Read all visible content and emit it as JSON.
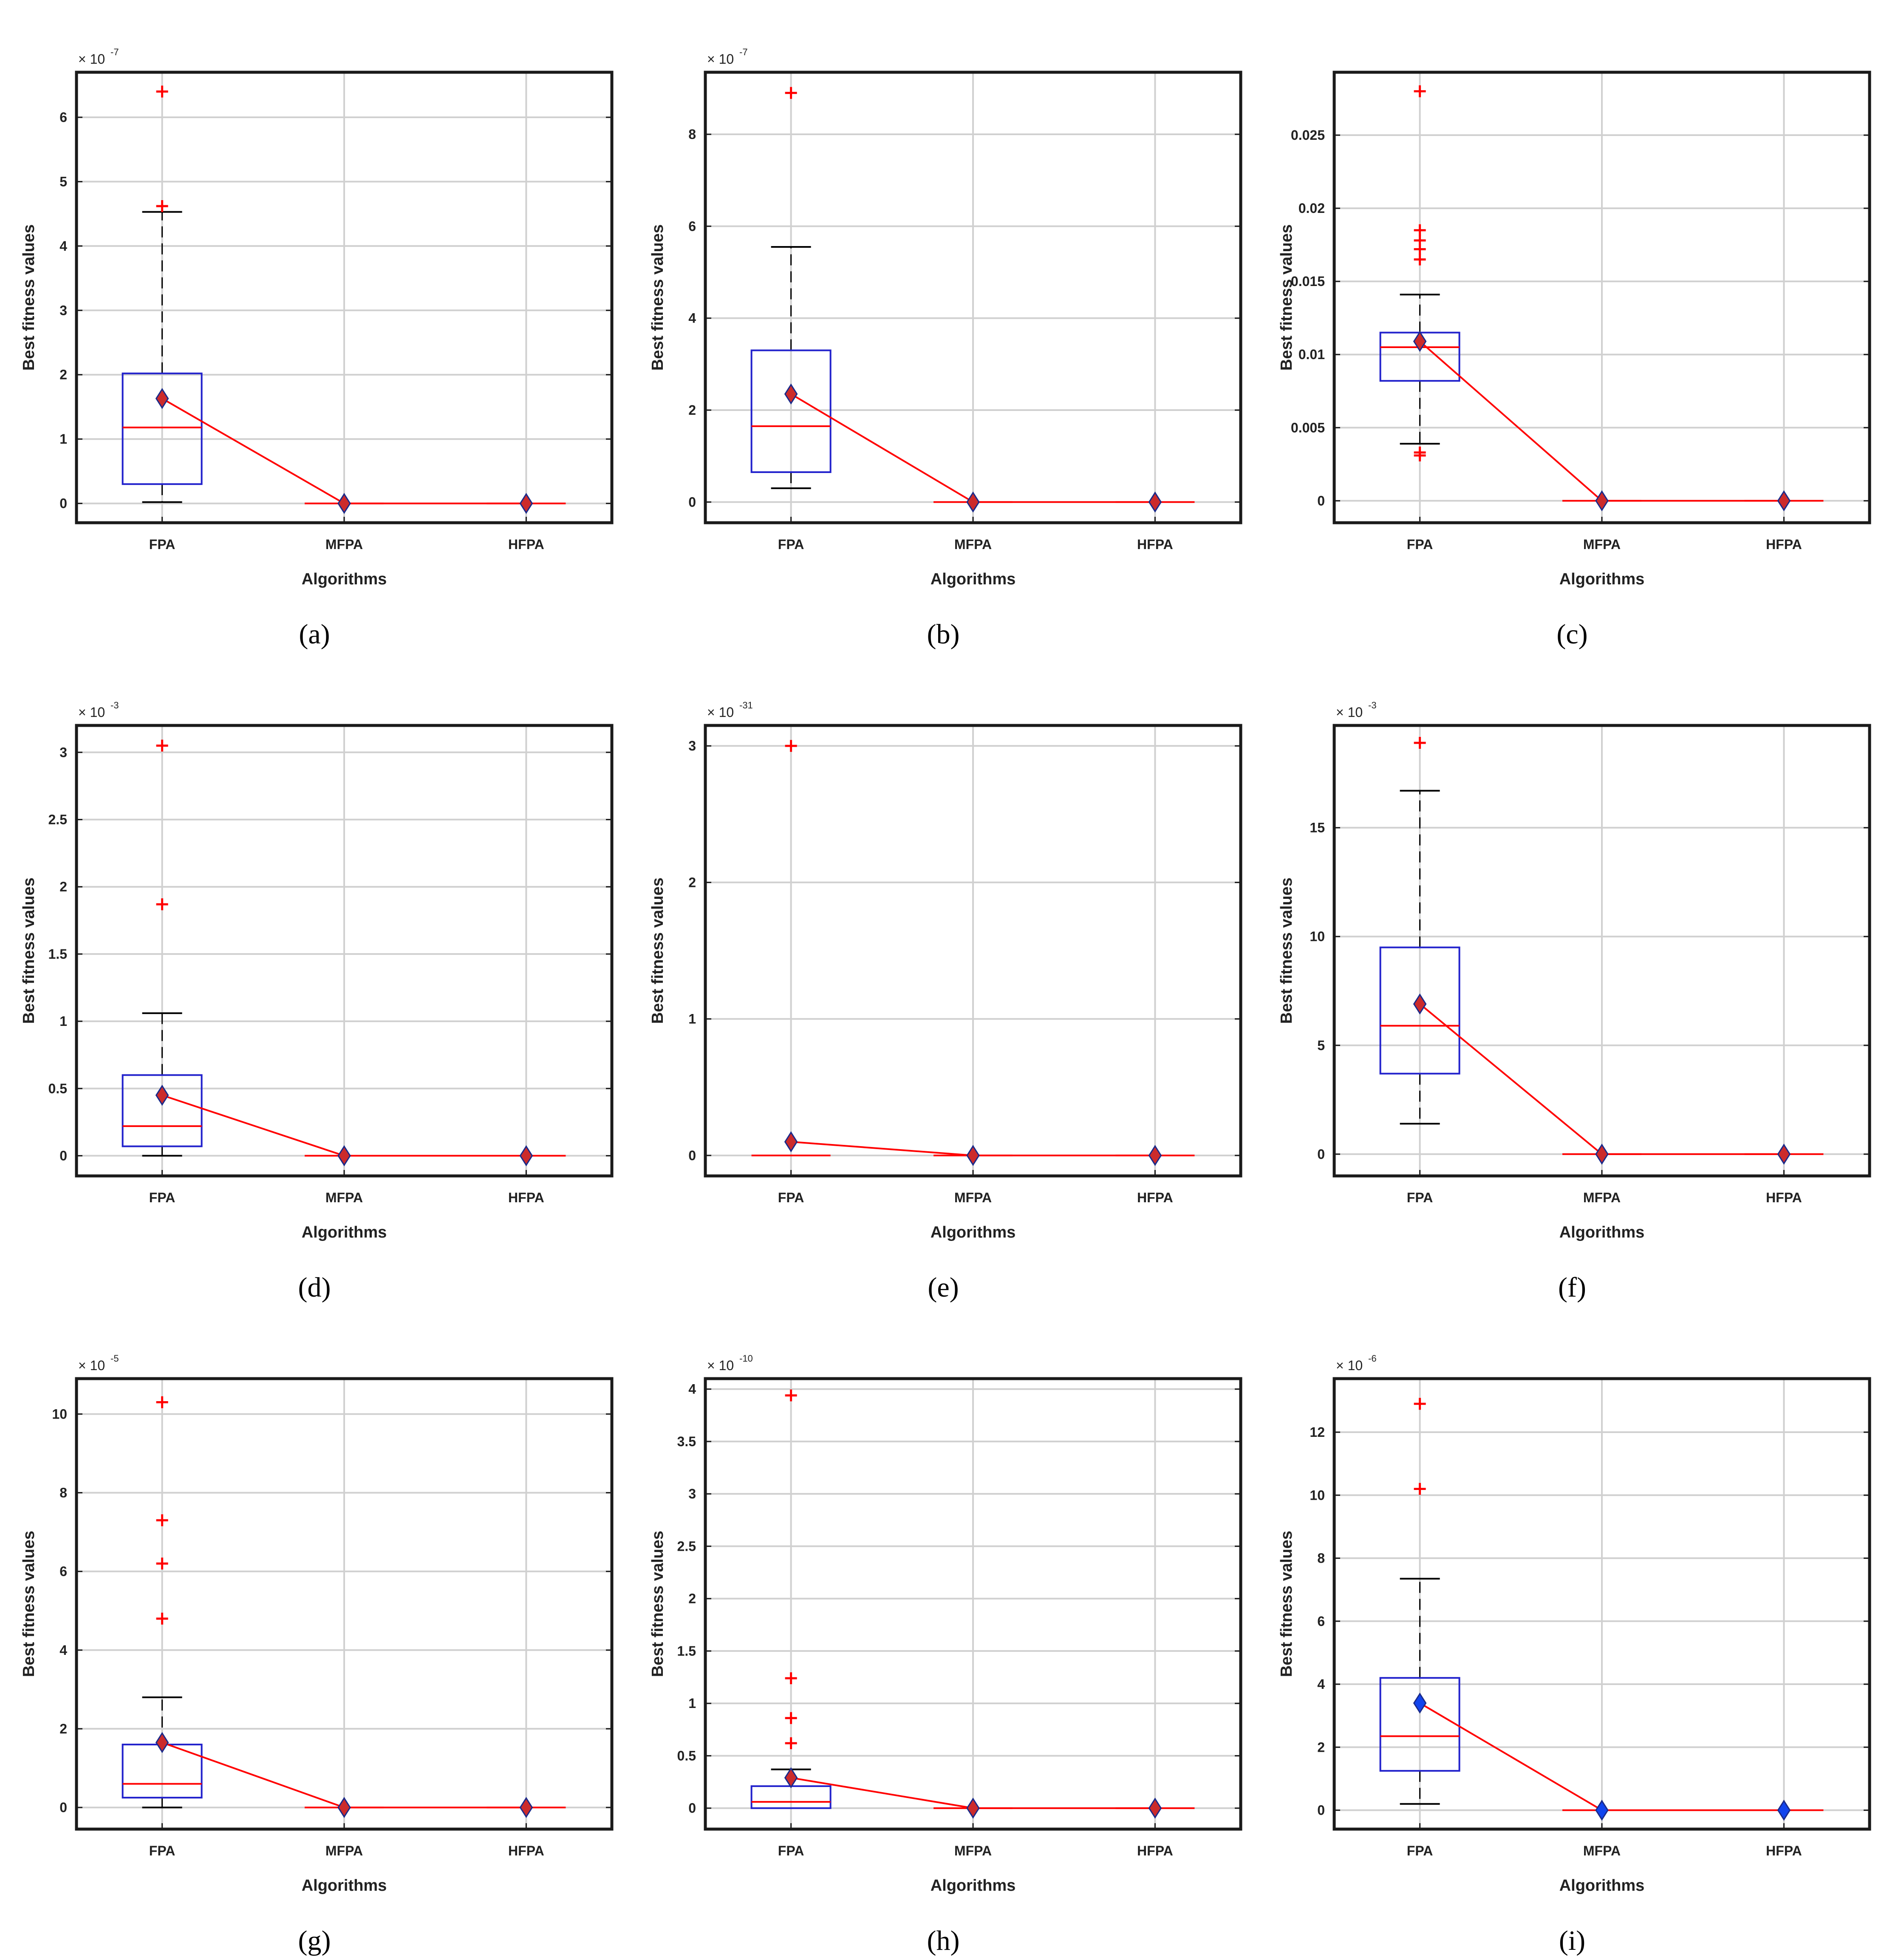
{
  "colors": {
    "box": "#2222cc",
    "median": "#ff0000",
    "whisker": "#000000",
    "outlier": "#ff0000",
    "mean_line": "#ff0000",
    "mean_marker": "#cc2b2b",
    "mean_marker_alt": "#1144ee",
    "grid": "#d0d0d0",
    "frame": "#1a1a1a"
  },
  "chart_data": [
    {
      "panel": "(a)",
      "type": "box",
      "ylabel": "Best fitness values",
      "xlabel": "Algorithms",
      "categories": [
        "FPA",
        "MFPA",
        "HFPA"
      ],
      "exponent": "-7",
      "ylim": [
        -0.3,
        6.7
      ],
      "yticks": [
        0,
        1,
        2,
        3,
        4,
        5,
        6
      ],
      "ytick_labels": [
        "0",
        "1",
        "2",
        "3",
        "4",
        "5",
        "6"
      ],
      "boxes": [
        {
          "min": 0.02,
          "q1": 0.3,
          "median": 1.18,
          "q3": 2.02,
          "max": 4.53,
          "outliers": [
            4.62,
            6.4
          ],
          "mean": 1.63
        },
        {
          "min": 0,
          "q1": 0,
          "median": 0,
          "q3": 0,
          "max": 0,
          "outliers": [],
          "mean": 0
        },
        {
          "min": 0,
          "q1": 0,
          "median": 0,
          "q3": 0,
          "max": 0,
          "outliers": [],
          "mean": 0
        }
      ],
      "mean_style": "red"
    },
    {
      "panel": "(b)",
      "type": "box",
      "ylabel": "Best fitness values",
      "xlabel": "Algorithms",
      "categories": [
        "FPA",
        "MFPA",
        "HFPA"
      ],
      "exponent": "-7",
      "ylim": [
        -0.45,
        9.35
      ],
      "yticks": [
        0,
        2,
        4,
        6,
        8
      ],
      "ytick_labels": [
        "0",
        "2",
        "4",
        "6",
        "8"
      ],
      "boxes": [
        {
          "min": 0.3,
          "q1": 0.65,
          "median": 1.65,
          "q3": 3.3,
          "max": 5.55,
          "outliers": [
            8.9
          ],
          "mean": 2.35
        },
        {
          "min": 0,
          "q1": 0,
          "median": 0,
          "q3": 0,
          "max": 0,
          "outliers": [],
          "mean": 0
        },
        {
          "min": 0,
          "q1": 0,
          "median": 0,
          "q3": 0,
          "max": 0,
          "outliers": [],
          "mean": 0
        }
      ],
      "mean_style": "red"
    },
    {
      "panel": "(c)",
      "type": "box",
      "ylabel": "Best fitness values",
      "xlabel": "Algorithms",
      "categories": [
        "FPA",
        "MFPA",
        "HFPA"
      ],
      "exponent": "",
      "ylim": [
        -0.0015,
        0.0293
      ],
      "yticks": [
        0,
        0.005,
        0.01,
        0.015,
        0.02,
        0.025
      ],
      "ytick_labels": [
        "0",
        "0.005",
        "0.01",
        "0.015",
        "0.02",
        "0.025"
      ],
      "boxes": [
        {
          "min": 0.0039,
          "q1": 0.0082,
          "median": 0.0105,
          "q3": 0.0115,
          "max": 0.0141,
          "outliers": [
            0.0031,
            0.0033,
            0.0165,
            0.0172,
            0.0178,
            0.0185,
            0.028
          ],
          "mean": 0.0109
        },
        {
          "min": 0,
          "q1": 0,
          "median": 0,
          "q3": 0,
          "max": 0,
          "outliers": [],
          "mean": 0
        },
        {
          "min": 0,
          "q1": 0,
          "median": 0,
          "q3": 0,
          "max": 0,
          "outliers": [],
          "mean": 0
        }
      ],
      "mean_style": "red"
    },
    {
      "panel": "(d)",
      "type": "box",
      "ylabel": "Best fitness values",
      "xlabel": "Algorithms",
      "categories": [
        "FPA",
        "MFPA",
        "HFPA"
      ],
      "exponent": "-3",
      "ylim": [
        -0.15,
        3.2
      ],
      "yticks": [
        0,
        0.5,
        1,
        1.5,
        2,
        2.5,
        3
      ],
      "ytick_labels": [
        "0",
        "0.5",
        "1",
        "1.5",
        "2",
        "2.5",
        "3"
      ],
      "boxes": [
        {
          "min": 0,
          "q1": 0.07,
          "median": 0.22,
          "q3": 0.6,
          "max": 1.06,
          "outliers": [
            1.87,
            3.05
          ],
          "mean": 0.45
        },
        {
          "min": 0,
          "q1": 0,
          "median": 0,
          "q3": 0,
          "max": 0,
          "outliers": [],
          "mean": 0
        },
        {
          "min": 0,
          "q1": 0,
          "median": 0,
          "q3": 0,
          "max": 0,
          "outliers": [],
          "mean": 0
        }
      ],
      "mean_style": "red"
    },
    {
      "panel": "(e)",
      "type": "box",
      "ylabel": "Best fitness values",
      "xlabel": "Algorithms",
      "categories": [
        "FPA",
        "MFPA",
        "HFPA"
      ],
      "exponent": "-31",
      "ylim": [
        -0.15,
        3.15
      ],
      "yticks": [
        0,
        1,
        2,
        3
      ],
      "ytick_labels": [
        "0",
        "1",
        "2",
        "3"
      ],
      "boxes": [
        {
          "min": 0,
          "q1": 0,
          "median": 0,
          "q3": 0,
          "max": 0,
          "outliers": [
            3.0
          ],
          "mean": 0.1
        },
        {
          "min": 0,
          "q1": 0,
          "median": 0,
          "q3": 0,
          "max": 0,
          "outliers": [],
          "mean": 0
        },
        {
          "min": 0,
          "q1": 0,
          "median": 0,
          "q3": 0,
          "max": 0,
          "outliers": [],
          "mean": 0
        }
      ],
      "mean_style": "red"
    },
    {
      "panel": "(f)",
      "type": "box",
      "ylabel": "Best fitness values",
      "xlabel": "Algorithms",
      "categories": [
        "FPA",
        "MFPA",
        "HFPA"
      ],
      "exponent": "-3",
      "ylim": [
        -1.0,
        19.7
      ],
      "yticks": [
        0,
        5,
        10,
        15
      ],
      "ytick_labels": [
        "0",
        "5",
        "10",
        "15"
      ],
      "boxes": [
        {
          "min": 1.4,
          "q1": 3.7,
          "median": 5.9,
          "q3": 9.5,
          "max": 16.7,
          "outliers": [
            18.9
          ],
          "mean": 6.9
        },
        {
          "min": 0,
          "q1": 0,
          "median": 0,
          "q3": 0,
          "max": 0,
          "outliers": [],
          "mean": 0
        },
        {
          "min": 0,
          "q1": 0,
          "median": 0,
          "q3": 0,
          "max": 0,
          "outliers": [],
          "mean": 0
        }
      ],
      "mean_style": "red"
    },
    {
      "panel": "(g)",
      "type": "box",
      "ylabel": "Best fitness values",
      "xlabel": "Algorithms",
      "categories": [
        "FPA",
        "MFPA",
        "HFPA"
      ],
      "exponent": "-5",
      "ylim": [
        -0.55,
        10.9
      ],
      "yticks": [
        0,
        2,
        4,
        6,
        8,
        10
      ],
      "ytick_labels": [
        "0",
        "2",
        "4",
        "6",
        "8",
        "10"
      ],
      "boxes": [
        {
          "min": 0,
          "q1": 0.25,
          "median": 0.6,
          "q3": 1.6,
          "max": 2.8,
          "outliers": [
            4.8,
            6.2,
            7.3,
            10.3
          ],
          "mean": 1.65
        },
        {
          "min": 0,
          "q1": 0,
          "median": 0,
          "q3": 0,
          "max": 0,
          "outliers": [],
          "mean": 0
        },
        {
          "min": 0,
          "q1": 0,
          "median": 0,
          "q3": 0,
          "max": 0,
          "outliers": [],
          "mean": 0
        }
      ],
      "mean_style": "red"
    },
    {
      "panel": "(h)",
      "type": "box",
      "ylabel": "Best fitness values",
      "xlabel": "Algorithms",
      "categories": [
        "FPA",
        "MFPA",
        "HFPA"
      ],
      "exponent": "-10",
      "ylim": [
        -0.2,
        4.1
      ],
      "yticks": [
        0,
        0.5,
        1,
        1.5,
        2,
        2.5,
        3,
        3.5,
        4
      ],
      "ytick_labels": [
        "0",
        "0.5",
        "1",
        "1.5",
        "2",
        "2.5",
        "3",
        "3.5",
        "4"
      ],
      "boxes": [
        {
          "min": 0,
          "q1": 0,
          "median": 0.06,
          "q3": 0.21,
          "max": 0.37,
          "outliers": [
            0.62,
            0.86,
            1.24,
            3.94
          ],
          "mean": 0.29
        },
        {
          "min": 0,
          "q1": 0,
          "median": 0,
          "q3": 0,
          "max": 0,
          "outliers": [],
          "mean": 0
        },
        {
          "min": 0,
          "q1": 0,
          "median": 0,
          "q3": 0,
          "max": 0,
          "outliers": [],
          "mean": 0
        }
      ],
      "mean_style": "red"
    },
    {
      "panel": "(i)",
      "type": "box",
      "ylabel": "Best fitness values",
      "xlabel": "Algorithms",
      "categories": [
        "FPA",
        "MFPA",
        "HFPA"
      ],
      "exponent": "-6",
      "ylim": [
        -0.6,
        13.7
      ],
      "yticks": [
        0,
        2,
        4,
        6,
        8,
        10,
        12
      ],
      "ytick_labels": [
        "0",
        "2",
        "4",
        "6",
        "8",
        "10",
        "12"
      ],
      "boxes": [
        {
          "min": 0.2,
          "q1": 1.25,
          "median": 2.35,
          "q3": 4.2,
          "max": 7.35,
          "outliers": [
            10.2,
            12.9
          ],
          "mean": 3.4
        },
        {
          "min": 0,
          "q1": 0,
          "median": 0,
          "q3": 0,
          "max": 0,
          "outliers": [],
          "mean": 0
        },
        {
          "min": 0,
          "q1": 0,
          "median": 0,
          "q3": 0,
          "max": 0,
          "outliers": [],
          "mean": 0
        }
      ],
      "mean_style": "blue"
    }
  ]
}
